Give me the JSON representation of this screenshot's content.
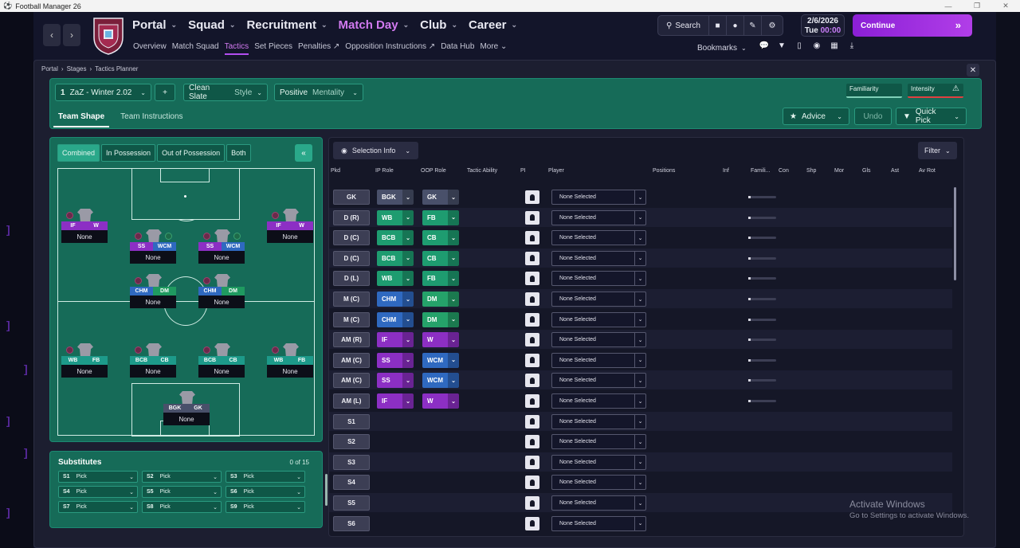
{
  "window": {
    "title": "Football Manager 26"
  },
  "nav": {
    "main": [
      {
        "label": "Portal",
        "active": false
      },
      {
        "label": "Squad",
        "active": false
      },
      {
        "label": "Recruitment",
        "active": false
      },
      {
        "label": "Match Day",
        "active": true
      },
      {
        "label": "Club",
        "active": false
      },
      {
        "label": "Career",
        "active": false
      }
    ],
    "sub": [
      {
        "label": "Overview",
        "active": false
      },
      {
        "label": "Match Squad",
        "active": false
      },
      {
        "label": "Tactics",
        "active": true
      },
      {
        "label": "Set Pieces",
        "active": false
      },
      {
        "label": "Penalties ↗",
        "active": false
      },
      {
        "label": "Opposition Instructions ↗",
        "active": false
      },
      {
        "label": "Data Hub",
        "active": false
      },
      {
        "label": "More ⌄",
        "active": false
      }
    ]
  },
  "toolbar": {
    "search": "Search",
    "date": "2/6/2026",
    "day": "Tue",
    "time": "00:00",
    "continue": "Continue",
    "bookmarks": "Bookmarks"
  },
  "breadcrumb": [
    "Portal",
    "Stages",
    "Tactics Planner"
  ],
  "tactic": {
    "number": "1",
    "name": "ZaZ - Winter 2.02",
    "add": "+",
    "style_value": "Clean Slate",
    "style_label": "Style",
    "mentality_value": "Positive",
    "mentality_label": "Mentality",
    "familiarity": "Familiarity",
    "intensity": "Intensity",
    "tabs": [
      "Team Shape",
      "Team Instructions"
    ],
    "advice": "Advice",
    "undo": "Undo",
    "quick_pick": "Quick Pick"
  },
  "pitch": {
    "toggles": [
      "Combined",
      "In Possession",
      "Out of Possession",
      "Both"
    ],
    "players": [
      {
        "ip": "IF",
        "oop": "W",
        "name": "None",
        "c1": "roleS",
        "c2": "roleS"
      },
      {
        "ip": "SS",
        "oop": "WCM",
        "name": "None",
        "c1": "roleS",
        "c2": "roleB"
      },
      {
        "ip": "SS",
        "oop": "WCM",
        "name": "None",
        "c1": "roleS",
        "c2": "roleB"
      },
      {
        "ip": "IF",
        "oop": "W",
        "name": "None",
        "c1": "roleS",
        "c2": "roleS"
      },
      {
        "ip": "CHM",
        "oop": "DM",
        "name": "None",
        "c1": "roleB",
        "c2": "roleDM"
      },
      {
        "ip": "CHM",
        "oop": "DM",
        "name": "None",
        "c1": "roleB",
        "c2": "roleDM"
      },
      {
        "ip": "WB",
        "oop": "FB",
        "name": "None",
        "c1": "roleC",
        "c2": "roleC"
      },
      {
        "ip": "BCB",
        "oop": "CB",
        "name": "None",
        "c1": "roleC",
        "c2": "roleC"
      },
      {
        "ip": "BCB",
        "oop": "CB",
        "name": "None",
        "c1": "roleC",
        "c2": "roleC"
      },
      {
        "ip": "WB",
        "oop": "FB",
        "name": "None",
        "c1": "roleC",
        "c2": "roleC"
      },
      {
        "ip": "BGK",
        "oop": "GK",
        "name": "None",
        "c1": "roleG",
        "c2": "roleG"
      }
    ]
  },
  "subs": {
    "title": "Substitutes",
    "count": "0 of 15",
    "items": [
      {
        "s": "S1",
        "v": "Pick"
      },
      {
        "s": "S2",
        "v": "Pick"
      },
      {
        "s": "S3",
        "v": "Pick"
      },
      {
        "s": "S4",
        "v": "Pick"
      },
      {
        "s": "S5",
        "v": "Pick"
      },
      {
        "s": "S6",
        "v": "Pick"
      },
      {
        "s": "S7",
        "v": "Pick"
      },
      {
        "s": "S8",
        "v": "Pick"
      },
      {
        "s": "S9",
        "v": "Pick"
      }
    ]
  },
  "selection": {
    "selection_info": "Selection Info",
    "filter": "Filter",
    "columns": [
      "Pkd",
      "IP Role",
      "OOP Role",
      "Tactic Ability",
      "PI",
      "Player",
      "Positions",
      "Inf",
      "Famili...",
      "Con",
      "Shp",
      "Mor",
      "Gls",
      "Ast",
      "Av Rot"
    ],
    "rows": [
      {
        "pos": "GK",
        "ip": "BGK",
        "oop": "GK",
        "ipc": "roleG",
        "oopc": "roleG",
        "player": "None Selected"
      },
      {
        "pos": "D (R)",
        "ip": "WB",
        "oop": "FB",
        "ipc": "ip-green",
        "oopc": "ip-green",
        "player": "None Selected"
      },
      {
        "pos": "D (C)",
        "ip": "BCB",
        "oop": "CB",
        "ipc": "ip-green",
        "oopc": "ip-green",
        "player": "None Selected"
      },
      {
        "pos": "D (C)",
        "ip": "BCB",
        "oop": "CB",
        "ipc": "ip-green",
        "oopc": "ip-green",
        "player": "None Selected"
      },
      {
        "pos": "D (L)",
        "ip": "WB",
        "oop": "FB",
        "ipc": "ip-green",
        "oopc": "ip-green",
        "player": "None Selected"
      },
      {
        "pos": "M (C)",
        "ip": "CHM",
        "oop": "DM",
        "ipc": "ip-blue",
        "oopc": "oop-green",
        "player": "None Selected"
      },
      {
        "pos": "M (C)",
        "ip": "CHM",
        "oop": "DM",
        "ipc": "ip-blue",
        "oopc": "oop-green",
        "player": "None Selected"
      },
      {
        "pos": "AM (R)",
        "ip": "IF",
        "oop": "W",
        "ipc": "ip-purple",
        "oopc": "ip-purple",
        "player": "None Selected"
      },
      {
        "pos": "AM (C)",
        "ip": "SS",
        "oop": "WCM",
        "ipc": "ip-purple",
        "oopc": "ip-blue",
        "player": "None Selected"
      },
      {
        "pos": "AM (C)",
        "ip": "SS",
        "oop": "WCM",
        "ipc": "ip-purple",
        "oopc": "ip-blue",
        "player": "None Selected"
      },
      {
        "pos": "AM (L)",
        "ip": "IF",
        "oop": "W",
        "ipc": "ip-purple",
        "oopc": "ip-purple",
        "player": "None Selected"
      },
      {
        "pos": "S1",
        "player": "None Selected"
      },
      {
        "pos": "S2",
        "player": "None Selected"
      },
      {
        "pos": "S3",
        "player": "None Selected"
      },
      {
        "pos": "S4",
        "player": "None Selected"
      },
      {
        "pos": "S5",
        "player": "None Selected"
      },
      {
        "pos": "S6",
        "player": "None Selected"
      }
    ]
  },
  "watermark": {
    "title": "Activate Windows",
    "sub": "Go to Settings to activate Windows."
  }
}
